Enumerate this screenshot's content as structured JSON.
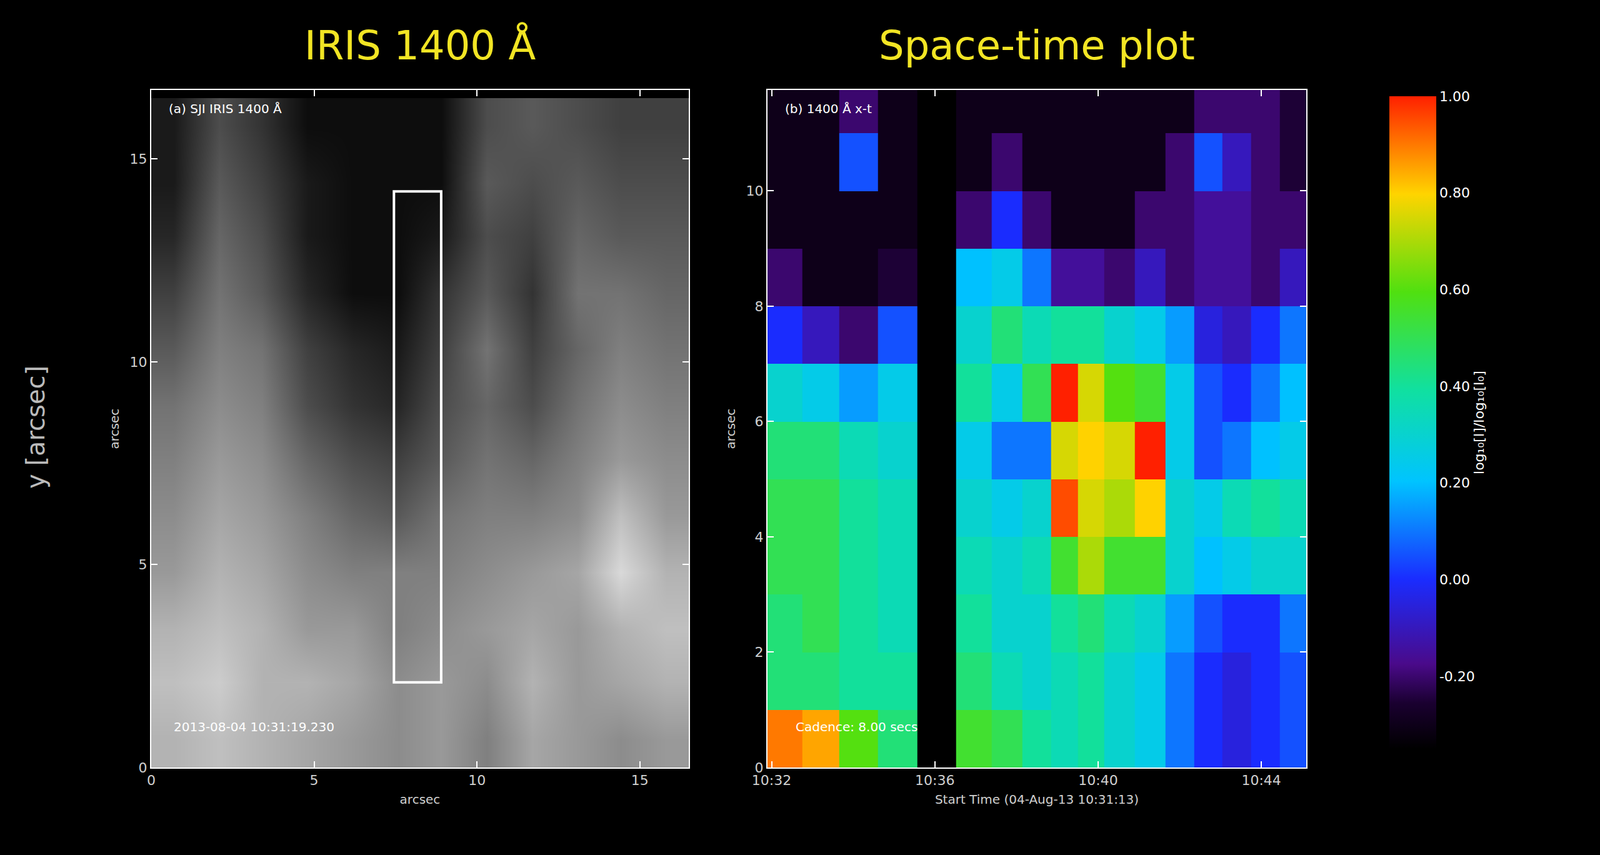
{
  "side_label": "y [arcsec]",
  "chart_data": [
    {
      "type": "heatmap",
      "title": "IRIS 1400 Å",
      "xlabel": "arcsec",
      "ylabel": "arcsec",
      "annotations": [
        "(a) SJI IRIS 1400 Å",
        "2013-08-04 10:31:19.230"
      ],
      "xlim": [
        0,
        16.5
      ],
      "xticks": [
        0,
        5,
        10,
        15
      ],
      "ylim": [
        0,
        16.7
      ],
      "yticks": [
        0,
        5,
        10,
        15
      ],
      "box": {
        "x": [
          7.45,
          8.9
        ],
        "y": [
          2.1,
          14.2
        ]
      },
      "x": [
        0.7,
        2.1,
        3.4,
        4.8,
        6.2,
        7.6,
        8.9,
        10.3,
        11.7,
        13.1,
        14.4,
        15.8
      ],
      "y": [
        0.7,
        2.1,
        3.4,
        4.8,
        6.2,
        7.6,
        8.9,
        10.3,
        11.7,
        13.1,
        14.4,
        15.8
      ],
      "zlim": [
        0,
        1
      ],
      "z": [
        [
          0.7,
          0.75,
          0.7,
          0.65,
          0.6,
          0.55,
          0.6,
          0.5,
          0.65,
          0.6,
          0.55,
          0.6
        ],
        [
          0.75,
          0.8,
          0.7,
          0.7,
          0.65,
          0.55,
          0.6,
          0.55,
          0.7,
          0.6,
          0.65,
          0.7
        ],
        [
          0.7,
          0.75,
          0.7,
          0.6,
          0.6,
          0.5,
          0.55,
          0.6,
          0.65,
          0.6,
          0.7,
          0.75
        ],
        [
          0.6,
          0.7,
          0.65,
          0.55,
          0.5,
          0.5,
          0.5,
          0.55,
          0.6,
          0.65,
          0.85,
          0.7
        ],
        [
          0.55,
          0.65,
          0.6,
          0.5,
          0.4,
          0.35,
          0.45,
          0.5,
          0.5,
          0.55,
          0.75,
          0.6
        ],
        [
          0.5,
          0.6,
          0.55,
          0.4,
          0.3,
          0.25,
          0.35,
          0.45,
          0.4,
          0.5,
          0.6,
          0.55
        ],
        [
          0.45,
          0.55,
          0.5,
          0.3,
          0.2,
          0.15,
          0.3,
          0.4,
          0.3,
          0.45,
          0.55,
          0.5
        ],
        [
          0.35,
          0.5,
          0.45,
          0.25,
          0.15,
          0.1,
          0.25,
          0.45,
          0.25,
          0.4,
          0.5,
          0.45
        ],
        [
          0.25,
          0.45,
          0.35,
          0.15,
          0.05,
          0.05,
          0.2,
          0.35,
          0.2,
          0.45,
          0.45,
          0.4
        ],
        [
          0.15,
          0.4,
          0.3,
          0.1,
          0.05,
          0.05,
          0.1,
          0.3,
          0.25,
          0.4,
          0.35,
          0.35
        ],
        [
          0.1,
          0.35,
          0.25,
          0.1,
          0.05,
          0.05,
          0.05,
          0.35,
          0.3,
          0.35,
          0.3,
          0.3
        ],
        [
          0.1,
          0.3,
          0.2,
          0.05,
          0.05,
          0.05,
          0.05,
          0.3,
          0.35,
          0.3,
          0.25,
          0.25
        ]
      ]
    },
    {
      "type": "heatmap",
      "title": "Space-time plot",
      "xlabel": "Start Time (04-Aug-13 10:31:13)",
      "ylabel": "arcsec",
      "annotations": [
        "(b) 1400 Å x-t",
        "Cadence: 8.00 secs"
      ],
      "xlim": [
        31.9,
        45.1
      ],
      "xticks": [
        {
          "value": 32,
          "label": "10:32"
        },
        {
          "value": 36,
          "label": "10:36"
        },
        {
          "value": 40,
          "label": "10:40"
        },
        {
          "value": 44,
          "label": "10:44"
        }
      ],
      "ylim": [
        0,
        11.75
      ],
      "yticks": [
        0,
        2,
        4,
        6,
        8,
        10
      ],
      "x": [
        32.3,
        33.2,
        34.1,
        35.1,
        36.05,
        37.0,
        37.8,
        38.5,
        39.2,
        39.8,
        40.5,
        41.3,
        42.0,
        42.7,
        43.4,
        44.1,
        44.8
      ],
      "y": [
        0.5,
        1.5,
        2.5,
        3.5,
        4.5,
        5.5,
        6.5,
        7.5,
        8.5,
        9.5,
        10.5,
        11.5
      ],
      "z": [
        [
          0.9,
          0.85,
          0.6,
          0.45,
          null,
          0.55,
          0.5,
          0.4,
          0.35,
          0.4,
          0.3,
          0.25,
          0.1,
          0.0,
          -0.05,
          0.0,
          0.05
        ],
        [
          0.45,
          0.45,
          0.4,
          0.4,
          null,
          0.45,
          0.35,
          0.3,
          0.35,
          0.4,
          0.3,
          0.25,
          0.1,
          0.0,
          -0.05,
          0.0,
          0.05
        ],
        [
          0.45,
          0.5,
          0.4,
          0.35,
          null,
          0.4,
          0.3,
          0.3,
          0.4,
          0.45,
          0.35,
          0.3,
          0.15,
          0.05,
          0.0,
          0.0,
          0.1
        ],
        [
          0.5,
          0.5,
          0.4,
          0.35,
          null,
          0.35,
          0.3,
          0.35,
          0.55,
          0.7,
          0.55,
          0.55,
          0.3,
          0.2,
          0.25,
          0.3,
          0.3
        ],
        [
          0.5,
          0.5,
          0.4,
          0.35,
          null,
          0.3,
          0.25,
          0.3,
          0.95,
          0.75,
          0.7,
          0.8,
          0.3,
          0.25,
          0.35,
          0.4,
          0.35
        ],
        [
          0.45,
          0.45,
          0.35,
          0.3,
          null,
          0.25,
          0.1,
          0.1,
          0.75,
          0.8,
          0.75,
          1.0,
          0.25,
          0.05,
          0.1,
          0.2,
          0.25
        ],
        [
          0.3,
          0.25,
          0.15,
          0.25,
          null,
          0.4,
          0.25,
          0.5,
          1.0,
          0.75,
          0.6,
          0.55,
          0.25,
          0.05,
          0.0,
          0.1,
          0.2
        ],
        [
          0.0,
          -0.1,
          -0.2,
          0.05,
          null,
          0.3,
          0.45,
          0.35,
          0.4,
          0.4,
          0.3,
          0.25,
          0.15,
          -0.05,
          -0.1,
          0.0,
          0.1
        ],
        [
          -0.2,
          -0.3,
          -0.3,
          -0.25,
          null,
          0.2,
          0.25,
          0.1,
          -0.15,
          -0.15,
          -0.2,
          -0.1,
          -0.2,
          -0.15,
          -0.15,
          -0.2,
          -0.1
        ],
        [
          -0.3,
          -0.3,
          -0.3,
          -0.3,
          null,
          -0.2,
          0.0,
          -0.2,
          -0.3,
          -0.3,
          -0.3,
          -0.2,
          -0.2,
          -0.15,
          -0.15,
          -0.2,
          -0.2
        ],
        [
          -0.3,
          -0.3,
          0.05,
          -0.3,
          null,
          -0.3,
          -0.2,
          -0.3,
          -0.3,
          -0.3,
          -0.3,
          -0.3,
          -0.2,
          0.05,
          -0.1,
          -0.2,
          -0.25
        ],
        [
          -0.3,
          -0.3,
          -0.2,
          -0.3,
          null,
          -0.3,
          -0.3,
          -0.3,
          -0.3,
          -0.3,
          -0.3,
          -0.3,
          -0.3,
          -0.2,
          -0.2,
          -0.2,
          -0.25
        ]
      ],
      "colorbar": {
        "title": "log₁₀[I]/log₁₀[I₀]",
        "zlim": [
          -0.35,
          1.0
        ],
        "ticks": [
          {
            "value": 1.0,
            "label": "1.00"
          },
          {
            "value": 0.8,
            "label": "0.80"
          },
          {
            "value": 0.6,
            "label": "0.60"
          },
          {
            "value": 0.4,
            "label": "0.40"
          },
          {
            "value": 0.2,
            "label": "0.20"
          },
          {
            "value": 0.0,
            "label": "0.00"
          },
          {
            "value": -0.2,
            "label": "-0.20"
          }
        ]
      }
    }
  ]
}
